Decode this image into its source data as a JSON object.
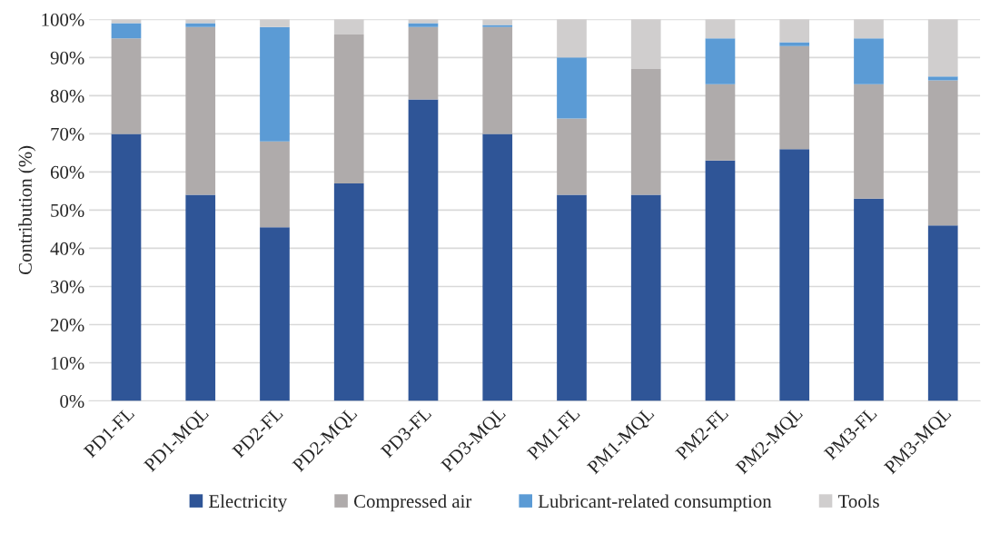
{
  "chart_data": {
    "type": "bar",
    "stacked": true,
    "ylabel": "Contribution (%)",
    "categories": [
      "PD1-FL",
      "PD1-MQL",
      "PD2-FL",
      "PD2-MQL",
      "PD3-FL",
      "PD3-MQL",
      "PM1-FL",
      "PM1-MQL",
      "PM2-FL",
      "PM2-MQL",
      "PM3-FL",
      "PM3-MQL"
    ],
    "series": [
      {
        "name": "Electricity",
        "color": "#2f5597",
        "values": [
          70,
          54,
          45.5,
          57,
          79,
          70,
          54,
          54,
          63,
          66,
          53,
          46
        ]
      },
      {
        "name": "Compressed air",
        "color": "#afabab",
        "values": [
          25,
          44,
          22.5,
          39,
          19,
          28,
          20,
          33,
          20,
          27,
          30,
          38
        ]
      },
      {
        "name": "Lubricant-related consumption",
        "color": "#5b9bd5",
        "values": [
          4,
          1,
          30,
          0,
          1,
          0.5,
          16,
          0,
          12,
          1,
          12,
          1
        ]
      },
      {
        "name": "Tools",
        "color": "#d0cece",
        "values": [
          1,
          1,
          2,
          4,
          1,
          1.5,
          10,
          13,
          5,
          6,
          5,
          15
        ]
      }
    ],
    "ylim": [
      0,
      100
    ],
    "yticks": [
      {
        "value": 0,
        "label": "0%"
      },
      {
        "value": 10,
        "label": "10%"
      },
      {
        "value": 20,
        "label": "20%"
      },
      {
        "value": 30,
        "label": "30%"
      },
      {
        "value": 40,
        "label": "40%"
      },
      {
        "value": 50,
        "label": "50%"
      },
      {
        "value": 60,
        "label": "60%"
      },
      {
        "value": 70,
        "label": "70%"
      },
      {
        "value": 80,
        "label": "80%"
      },
      {
        "value": 90,
        "label": "90%"
      },
      {
        "value": 100,
        "label": "100%"
      }
    ],
    "grid": "y",
    "legend": "bottom"
  }
}
